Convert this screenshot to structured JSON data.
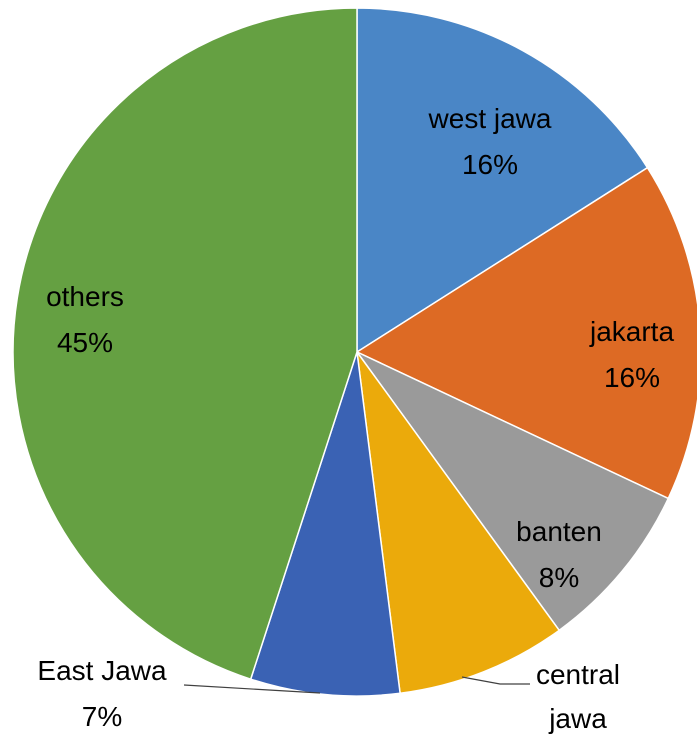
{
  "chart_data": {
    "type": "pie",
    "title": "",
    "slices": [
      {
        "label": "west jawa",
        "line2": "",
        "value_label": "16%",
        "value": 16,
        "color": "#4a86c6"
      },
      {
        "label": "jakarta",
        "line2": "",
        "value_label": "16%",
        "value": 16,
        "color": "#dd6a24"
      },
      {
        "label": "banten",
        "line2": "",
        "value_label": "8%",
        "value": 8,
        "color": "#9a9a9a"
      },
      {
        "label": "central",
        "line2": "jawa",
        "value_label": "8%",
        "value": 8,
        "color": "#ebaa0b"
      },
      {
        "label": "East Jawa",
        "line2": "",
        "value_label": "7%",
        "value": 7,
        "color": "#3a62b4"
      },
      {
        "label": "others",
        "line2": "",
        "value_label": "45%",
        "value": 45,
        "color": "#65a042"
      }
    ],
    "start_angle_deg": 0,
    "direction": "clockwise",
    "legend": "none",
    "data_labels": "category-and-percentage"
  }
}
